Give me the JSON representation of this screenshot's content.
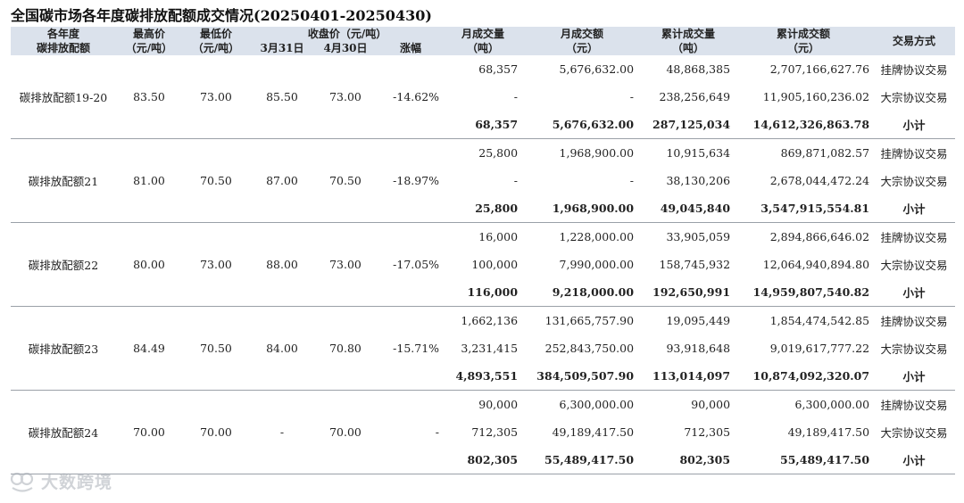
{
  "title": "全国碳市场各年度碳排放配额成交情况(20250401-20250430)",
  "headers": {
    "year": "各年度\n碳排放配额",
    "high": "最高价\n（元/吨）",
    "low": "最低价\n（元/吨）",
    "close_group": "收盘价（元/吨）",
    "close_mar31": "3月31日",
    "close_apr30": "4月30日",
    "change": "涨幅",
    "month_vol": "月成交量\n（吨）",
    "month_amt": "月成交额\n（元）",
    "cum_vol": "累计成交量\n（吨）",
    "cum_amt": "累计成交额\n（元）",
    "method": "交易方式"
  },
  "groups": [
    {
      "name": "碳排放配额19-20",
      "high": "83.50",
      "low": "73.00",
      "close_mar31": "85.50",
      "close_apr30": "73.00",
      "change": "-14.62%",
      "rows": [
        {
          "month_vol": "68,357",
          "month_amt": "5,676,632.00",
          "cum_vol": "48,868,385",
          "cum_amt": "2,707,166,627.76",
          "method": "挂牌协议交易"
        },
        {
          "month_vol": "-",
          "month_amt": "-",
          "cum_vol": "238,256,649",
          "cum_amt": "11,905,160,236.02",
          "method": "大宗协议交易"
        },
        {
          "month_vol": "68,357",
          "month_amt": "5,676,632.00",
          "cum_vol": "287,125,034",
          "cum_amt": "14,612,326,863.78",
          "method": "小计"
        }
      ]
    },
    {
      "name": "碳排放配额21",
      "high": "81.00",
      "low": "70.50",
      "close_mar31": "87.00",
      "close_apr30": "70.50",
      "change": "-18.97%",
      "rows": [
        {
          "month_vol": "25,800",
          "month_amt": "1,968,900.00",
          "cum_vol": "10,915,634",
          "cum_amt": "869,871,082.57",
          "method": "挂牌协议交易"
        },
        {
          "month_vol": "-",
          "month_amt": "-",
          "cum_vol": "38,130,206",
          "cum_amt": "2,678,044,472.24",
          "method": "大宗协议交易"
        },
        {
          "month_vol": "25,800",
          "month_amt": "1,968,900.00",
          "cum_vol": "49,045,840",
          "cum_amt": "3,547,915,554.81",
          "method": "小计"
        }
      ]
    },
    {
      "name": "碳排放配额22",
      "high": "80.00",
      "low": "73.00",
      "close_mar31": "88.00",
      "close_apr30": "73.00",
      "change": "-17.05%",
      "rows": [
        {
          "month_vol": "16,000",
          "month_amt": "1,228,000.00",
          "cum_vol": "33,905,059",
          "cum_amt": "2,894,866,646.02",
          "method": "挂牌协议交易"
        },
        {
          "month_vol": "100,000",
          "month_amt": "7,990,000.00",
          "cum_vol": "158,745,932",
          "cum_amt": "12,064,940,894.80",
          "method": "大宗协议交易"
        },
        {
          "month_vol": "116,000",
          "month_amt": "9,218,000.00",
          "cum_vol": "192,650,991",
          "cum_amt": "14,959,807,540.82",
          "method": "小计"
        }
      ]
    },
    {
      "name": "碳排放配额23",
      "high": "84.49",
      "low": "70.50",
      "close_mar31": "84.00",
      "close_apr30": "70.80",
      "change": "-15.71%",
      "rows": [
        {
          "month_vol": "1,662,136",
          "month_amt": "131,665,757.90",
          "cum_vol": "19,095,449",
          "cum_amt": "1,854,474,542.85",
          "method": "挂牌协议交易"
        },
        {
          "month_vol": "3,231,415",
          "month_amt": "252,843,750.00",
          "cum_vol": "93,918,648",
          "cum_amt": "9,019,617,777.22",
          "method": "大宗协议交易"
        },
        {
          "month_vol": "4,893,551",
          "month_amt": "384,509,507.90",
          "cum_vol": "113,014,097",
          "cum_amt": "10,874,092,320.07",
          "method": "小计"
        }
      ]
    },
    {
      "name": "碳排放配额24",
      "high": "70.00",
      "low": "70.00",
      "close_mar31": "-",
      "close_apr30": "70.00",
      "change": "-",
      "rows": [
        {
          "month_vol": "90,000",
          "month_amt": "6,300,000.00",
          "cum_vol": "90,000",
          "cum_amt": "6,300,000.00",
          "method": "挂牌协议交易"
        },
        {
          "month_vol": "712,305",
          "month_amt": "49,189,417.50",
          "cum_vol": "712,305",
          "cum_amt": "49,189,417.50",
          "method": "大宗协议交易"
        },
        {
          "month_vol": "802,305",
          "month_amt": "55,489,417.50",
          "cum_vol": "802,305",
          "cum_amt": "55,489,417.50",
          "method": "小计"
        }
      ]
    }
  ],
  "watermark": {
    "text": "大数跨境",
    "icon": "brand-logo-icon"
  }
}
